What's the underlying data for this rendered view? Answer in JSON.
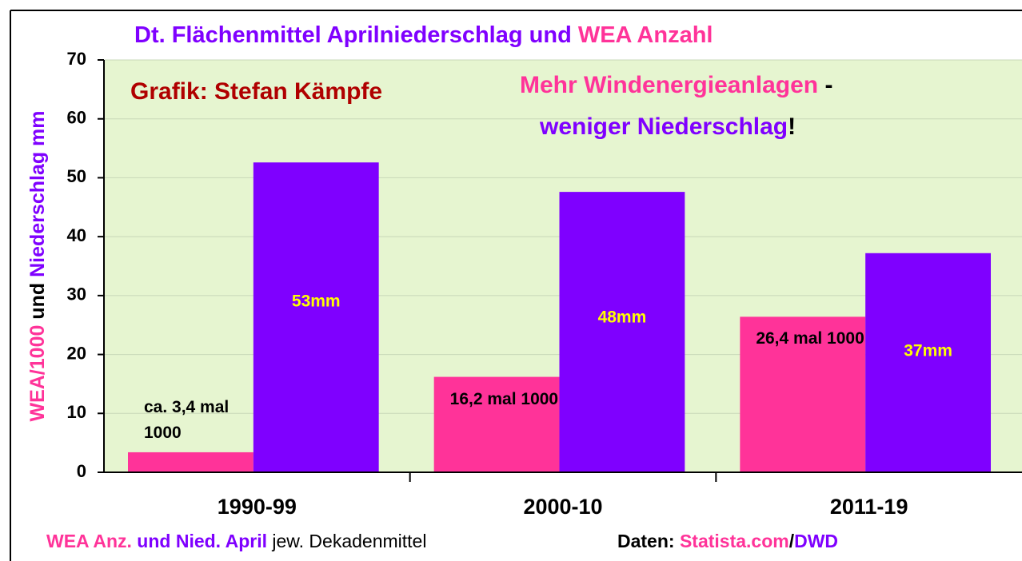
{
  "chart_data": {
    "type": "bar",
    "title": [
      "Dt. Flächenmittel Aprilniederschlag und",
      "WEA Anzahl"
    ],
    "annotations": {
      "author": "Grafik: Stefan Kämpfe",
      "claim": [
        "Mehr Windenergieanlagen",
        "-",
        "weniger Niederschlag",
        "!"
      ]
    },
    "y_label": [
      "WEA/1000",
      "und",
      "Niederschlag mm"
    ],
    "footer": [
      "WEA  Anz.",
      "und Nied. April",
      "jew. Dekadenmittel",
      "Daten:",
      "Statista.com",
      "/",
      "DWD"
    ],
    "categories": [
      "1990-99",
      "2000-10",
      "2011-19"
    ],
    "series": [
      {
        "color": "#ff3399",
        "values": [
          3.4,
          16.2,
          26.4
        ],
        "value_labels": [
          "ca. 3,4 mal 1000",
          "16,2 mal 1000",
          "26,4 mal 1000"
        ]
      },
      {
        "color": "#7f00ff",
        "values": [
          52.6,
          47.6,
          37.2
        ],
        "value_labels": [
          "53mm",
          "48mm",
          "37mm"
        ]
      }
    ],
    "ylim": [
      0,
      70
    ],
    "yticks": [
      0,
      10,
      20,
      30,
      40,
      50,
      60,
      70
    ],
    "grid": true,
    "plot_background": "#e6f5d0"
  }
}
